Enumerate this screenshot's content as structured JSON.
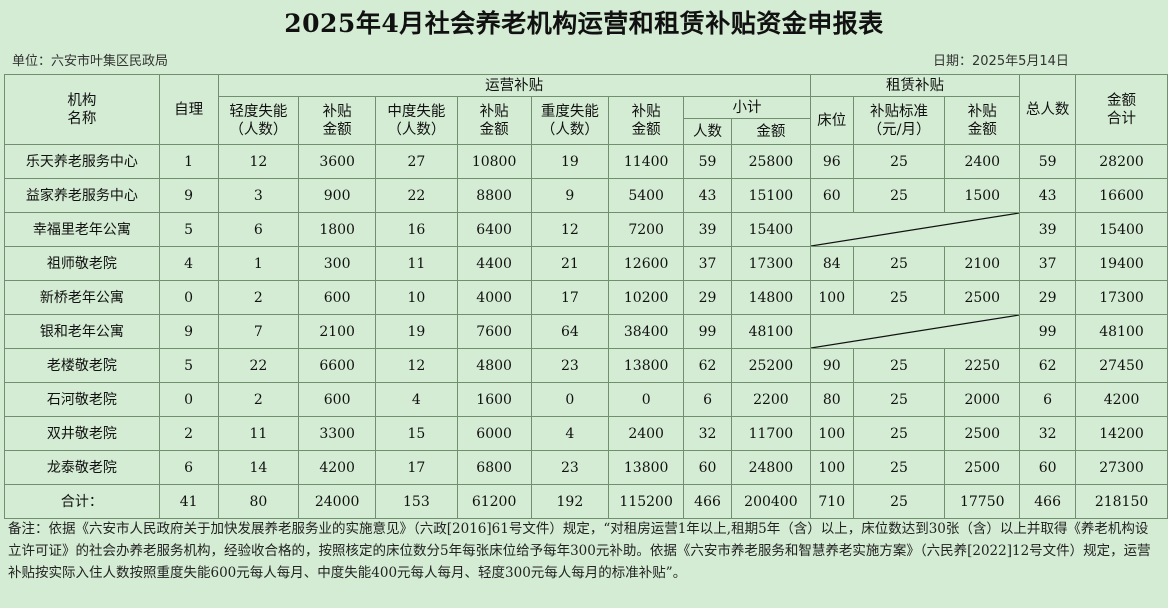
{
  "title": "2025年4月社会养老机构运营和租赁补贴资金申报表",
  "unit": "单位：六安市叶集区民政局",
  "date": "日期：2025年5月14日",
  "headers": {
    "org": "机构\n名称",
    "self_care": "自理",
    "op_group": "运营补贴",
    "light": "轻度失能\n（人数）",
    "light_amt": "补贴\n金额",
    "medium": "中度失能\n（人数）",
    "medium_amt": "补贴\n金额",
    "severe": "重度失能\n（人数）",
    "severe_amt": "补贴\n金额",
    "subtotal": "小计",
    "sub_people": "人数",
    "sub_amount": "金额",
    "rent_group": "租赁补贴",
    "beds": "床位",
    "standard": "补贴标准\n（元/月）",
    "rent_amt": "补贴\n金额",
    "total_people": "总人数",
    "total_amount": "金额\n合计"
  },
  "rows": [
    {
      "name": "乐天养老服务中心",
      "self": "1",
      "light": "12",
      "light_amt": "3600",
      "medium": "27",
      "medium_amt": "10800",
      "severe": "19",
      "severe_amt": "11400",
      "sub_people": "59",
      "sub_amt": "25800",
      "beds": "96",
      "std": "25",
      "rent_amt": "2400",
      "total_people": "59",
      "total_amt": "28200"
    },
    {
      "name": "益家养老服务中心",
      "self": "9",
      "light": "3",
      "light_amt": "900",
      "medium": "22",
      "medium_amt": "8800",
      "severe": "9",
      "severe_amt": "5400",
      "sub_people": "43",
      "sub_amt": "15100",
      "beds": "60",
      "std": "25",
      "rent_amt": "1500",
      "total_people": "43",
      "total_amt": "16600"
    },
    {
      "name": "幸福里老年公寓",
      "self": "5",
      "light": "6",
      "light_amt": "1800",
      "medium": "16",
      "medium_amt": "6400",
      "severe": "12",
      "severe_amt": "7200",
      "sub_people": "39",
      "sub_amt": "15400",
      "total_people": "39",
      "total_amt": "15400"
    },
    {
      "name": "祖师敬老院",
      "self": "4",
      "light": "1",
      "light_amt": "300",
      "medium": "11",
      "medium_amt": "4400",
      "severe": "21",
      "severe_amt": "12600",
      "sub_people": "37",
      "sub_amt": "17300",
      "beds": "84",
      "std": "25",
      "rent_amt": "2100",
      "total_people": "37",
      "total_amt": "19400"
    },
    {
      "name": "新桥老年公寓",
      "self": "0",
      "light": "2",
      "light_amt": "600",
      "medium": "10",
      "medium_amt": "4000",
      "severe": "17",
      "severe_amt": "10200",
      "sub_people": "29",
      "sub_amt": "14800",
      "beds": "100",
      "std": "25",
      "rent_amt": "2500",
      "total_people": "29",
      "total_amt": "17300"
    },
    {
      "name": "银和老年公寓",
      "self": "9",
      "light": "7",
      "light_amt": "2100",
      "medium": "19",
      "medium_amt": "7600",
      "severe": "64",
      "severe_amt": "38400",
      "sub_people": "99",
      "sub_amt": "48100",
      "total_people": "99",
      "total_amt": "48100"
    },
    {
      "name": "老楼敬老院",
      "self": "5",
      "light": "22",
      "light_amt": "6600",
      "medium": "12",
      "medium_amt": "4800",
      "severe": "23",
      "severe_amt": "13800",
      "sub_people": "62",
      "sub_amt": "25200",
      "beds": "90",
      "std": "25",
      "rent_amt": "2250",
      "total_people": "62",
      "total_amt": "27450"
    },
    {
      "name": "石河敬老院",
      "self": "0",
      "light": "2",
      "light_amt": "600",
      "medium": "4",
      "medium_amt": "1600",
      "severe": "0",
      "severe_amt": "0",
      "sub_people": "6",
      "sub_amt": "2200",
      "beds": "80",
      "std": "25",
      "rent_amt": "2000",
      "total_people": "6",
      "total_amt": "4200"
    },
    {
      "name": "双井敬老院",
      "self": "2",
      "light": "11",
      "light_amt": "3300",
      "medium": "15",
      "medium_amt": "6000",
      "severe": "4",
      "severe_amt": "2400",
      "sub_people": "32",
      "sub_amt": "11700",
      "beds": "100",
      "std": "25",
      "rent_amt": "2500",
      "total_people": "32",
      "total_amt": "14200"
    },
    {
      "name": "龙泰敬老院",
      "self": "6",
      "light": "14",
      "light_amt": "4200",
      "medium": "17",
      "medium_amt": "6800",
      "severe": "23",
      "severe_amt": "13800",
      "sub_people": "60",
      "sub_amt": "24800",
      "beds": "100",
      "std": "25",
      "rent_amt": "2500",
      "total_people": "60",
      "total_amt": "27300"
    }
  ],
  "totals": {
    "name": "合计：",
    "self": "41",
    "light": "80",
    "light_amt": "24000",
    "medium": "153",
    "medium_amt": "61200",
    "severe": "192",
    "severe_amt": "115200",
    "sub_people": "466",
    "sub_amt": "200400",
    "beds": "710",
    "std": "25",
    "rent_amt": "17750",
    "total_people": "466",
    "total_amt": "218150"
  },
  "note": "备注：依据《六安市人民政府关于加快发展养老服务业的实施意见》（六政[2016]61号文件）规定，“对租房运营1年以上,租期5年（含）以上，床位数达到30张（含）以上并取得《养老机构设立许可证》的社会办养老服务机构，经验收合格的，按照核定的床位数分5年每张床位给予每年300元补助。依据《六安市养老服务和智慧养老实施方案》（六民养[2022]12号文件）规定，运营补贴按实际入住人数按照重度失能600元每人每月、中度失能400元每人每月、轻度300元每人每月的标准补贴”。",
  "colors": {
    "background": "#d4ecd4",
    "grid": "#6f8f6f"
  }
}
